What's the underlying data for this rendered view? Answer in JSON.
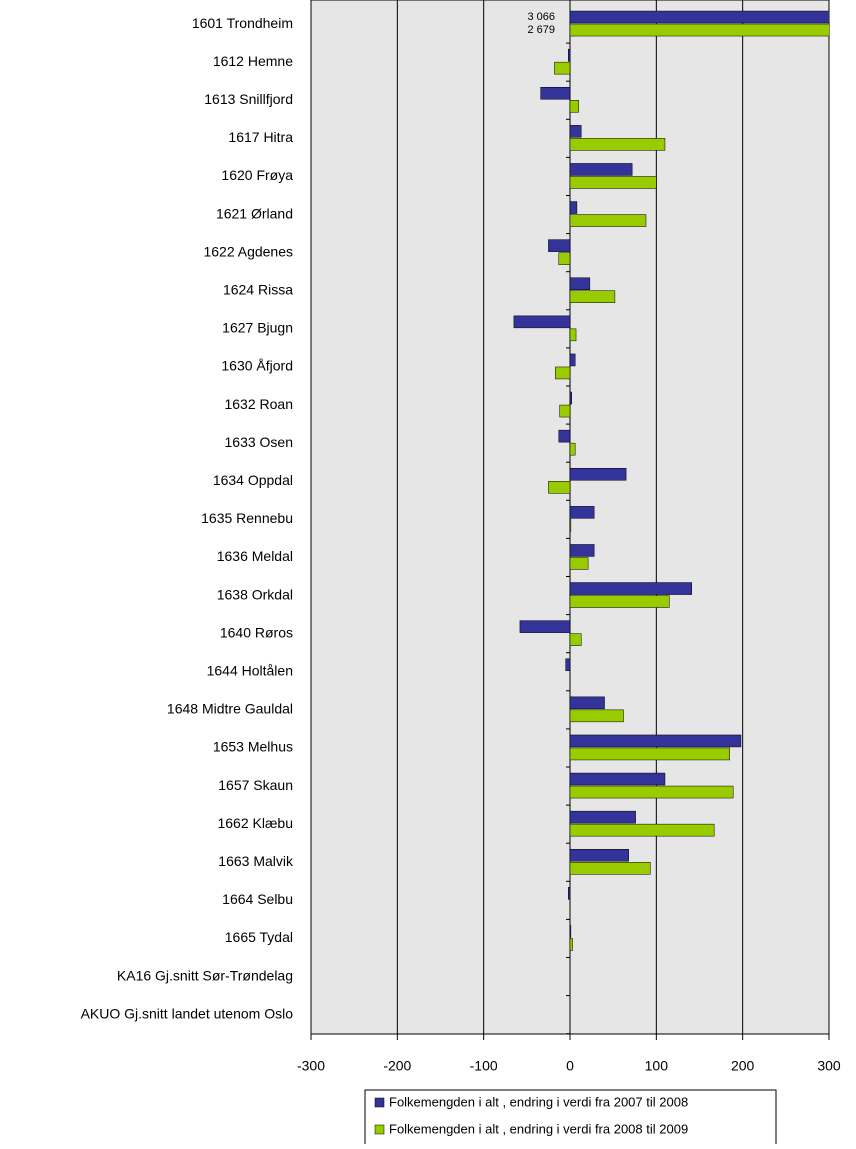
{
  "chart_data": {
    "type": "bar",
    "orientation": "horizontal",
    "categories": [
      "1601 Trondheim",
      "1612 Hemne",
      "1613 Snillfjord",
      "1617 Hitra",
      "1620 Frøya",
      "1621 Ørland",
      "1622 Agdenes",
      "1624 Rissa",
      "1627 Bjugn",
      "1630 Åfjord",
      "1632 Roan",
      "1633 Osen",
      "1634 Oppdal",
      "1635 Rennebu",
      "1636 Meldal",
      "1638 Orkdal",
      "1640 Røros",
      "1644 Holtålen",
      "1648 Midtre Gauldal",
      "1653 Melhus",
      "1657 Skaun",
      "1662 Klæbu",
      "1663 Malvik",
      "1664 Selbu",
      "1665 Tydal",
      "KA16 Gj.snitt Sør-Trøndelag",
      "AKUO Gj.snitt landet utenom Oslo"
    ],
    "series": [
      {
        "name": "Folkemengden i alt , endring i verdi fra 2007 til 2008",
        "color": "#333399",
        "values": [
          3066,
          -2,
          -34,
          13,
          72,
          8,
          -25,
          23,
          -65,
          6,
          2,
          -13,
          65,
          28,
          28,
          141,
          -58,
          -5,
          40,
          198,
          110,
          76,
          68,
          -2,
          1,
          null,
          null
        ],
        "value_labels": [
          "3 066",
          null,
          null,
          null,
          null,
          null,
          null,
          null,
          null,
          null,
          null,
          null,
          null,
          null,
          null,
          null,
          null,
          null,
          null,
          null,
          null,
          null,
          null,
          null,
          null,
          null,
          null
        ]
      },
      {
        "name": "Folkemengden i alt , endring i verdi fra 2008 til 2009",
        "color": "#99cc00",
        "values": [
          2679,
          -18,
          10,
          110,
          100,
          88,
          -13,
          52,
          7,
          -17,
          -12,
          6,
          -25,
          1,
          21,
          115,
          13,
          0,
          62,
          185,
          189,
          167,
          93,
          0,
          3,
          null,
          null
        ],
        "value_labels": [
          "2 679",
          null,
          null,
          null,
          null,
          null,
          null,
          null,
          null,
          null,
          null,
          null,
          null,
          null,
          null,
          null,
          null,
          null,
          null,
          null,
          null,
          null,
          null,
          null,
          null,
          null,
          null
        ]
      }
    ],
    "xlim": [
      -300,
      300
    ],
    "xticks": [
      -300,
      -200,
      -100,
      0,
      100,
      200,
      300
    ],
    "grid": true
  }
}
